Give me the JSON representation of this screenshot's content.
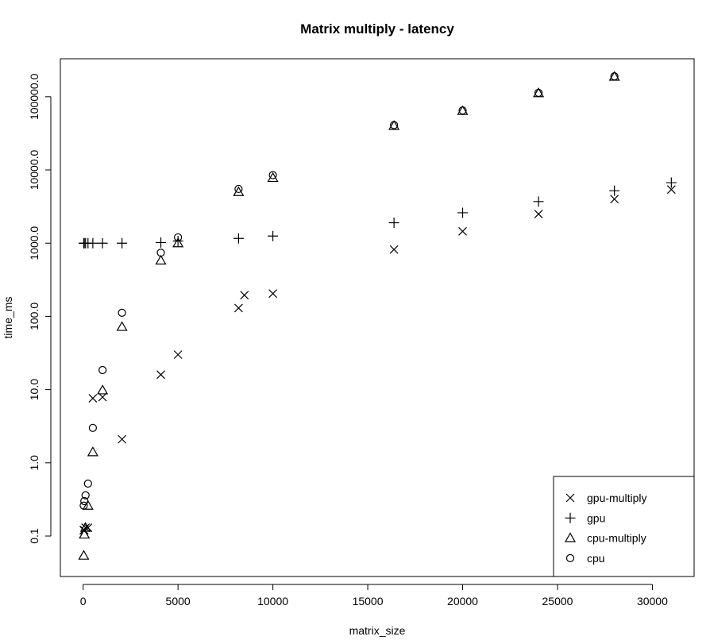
{
  "chart_data": {
    "type": "scatter",
    "title": "Matrix multiply - latency",
    "xlabel": "matrix_size",
    "ylabel": "time_ms",
    "xscale": "linear",
    "yscale": "log",
    "xlim": [
      -1200,
      32200
    ],
    "ylim": [
      0.028,
      330000
    ],
    "xticks": [
      0,
      5000,
      10000,
      15000,
      20000,
      25000,
      30000
    ],
    "xtick_labels": [
      "0",
      "5000",
      "10000",
      "15000",
      "20000",
      "25000",
      "30000"
    ],
    "yticks": [
      0.1,
      1,
      10,
      100,
      1000,
      10000,
      100000
    ],
    "ytick_labels": [
      "0.1",
      "1.0",
      "10.0",
      "100.0",
      "1000.0",
      "10000.0",
      "100000.0"
    ],
    "grid": false,
    "legend_position": "bottom-right",
    "series": [
      {
        "name": "gpu-multiply",
        "marker": "x",
        "points": [
          [
            32,
            0.12
          ],
          [
            64,
            0.12
          ],
          [
            128,
            0.13
          ],
          [
            256,
            0.13
          ],
          [
            512,
            7.6
          ],
          [
            1024,
            7.9
          ],
          [
            2048,
            2.1
          ],
          [
            4096,
            16
          ],
          [
            5000,
            30
          ],
          [
            8192,
            130
          ],
          [
            8500,
            195
          ],
          [
            10000,
            205
          ],
          [
            16384,
            820
          ],
          [
            20000,
            1450
          ],
          [
            24000,
            2500
          ],
          [
            28000,
            4000
          ],
          [
            31000,
            5400
          ]
        ]
      },
      {
        "name": "gpu",
        "marker": "plus",
        "points": [
          [
            32,
            1000
          ],
          [
            64,
            1000
          ],
          [
            128,
            1000
          ],
          [
            256,
            1000
          ],
          [
            512,
            1000
          ],
          [
            1024,
            1000
          ],
          [
            2048,
            1000
          ],
          [
            4096,
            1020
          ],
          [
            5000,
            1070
          ],
          [
            8192,
            1160
          ],
          [
            10000,
            1250
          ],
          [
            16384,
            1900
          ],
          [
            20000,
            2600
          ],
          [
            24000,
            3700
          ],
          [
            28000,
            5200
          ],
          [
            31000,
            6700
          ]
        ]
      },
      {
        "name": "cpu-multiply",
        "marker": "triangle",
        "points": [
          [
            32,
            0.054
          ],
          [
            64,
            0.105
          ],
          [
            128,
            0.13
          ],
          [
            256,
            0.26
          ],
          [
            512,
            1.4
          ],
          [
            1024,
            9.8
          ],
          [
            2048,
            72
          ],
          [
            4096,
            580
          ],
          [
            5000,
            1000
          ],
          [
            8192,
            5000
          ],
          [
            10000,
            7800
          ],
          [
            16384,
            40000
          ],
          [
            20000,
            64000
          ],
          [
            24000,
            112000
          ],
          [
            28000,
            188000
          ]
        ]
      },
      {
        "name": "cpu",
        "marker": "circle",
        "points": [
          [
            32,
            0.26
          ],
          [
            64,
            0.3
          ],
          [
            128,
            0.36
          ],
          [
            256,
            0.52
          ],
          [
            512,
            3.0
          ],
          [
            1024,
            18.5
          ],
          [
            2048,
            112
          ],
          [
            4096,
            740
          ],
          [
            5000,
            1200
          ],
          [
            8192,
            5500
          ],
          [
            10000,
            8500
          ],
          [
            16384,
            41000
          ],
          [
            20000,
            65000
          ],
          [
            24000,
            113000
          ],
          [
            28000,
            190000
          ]
        ]
      }
    ]
  }
}
